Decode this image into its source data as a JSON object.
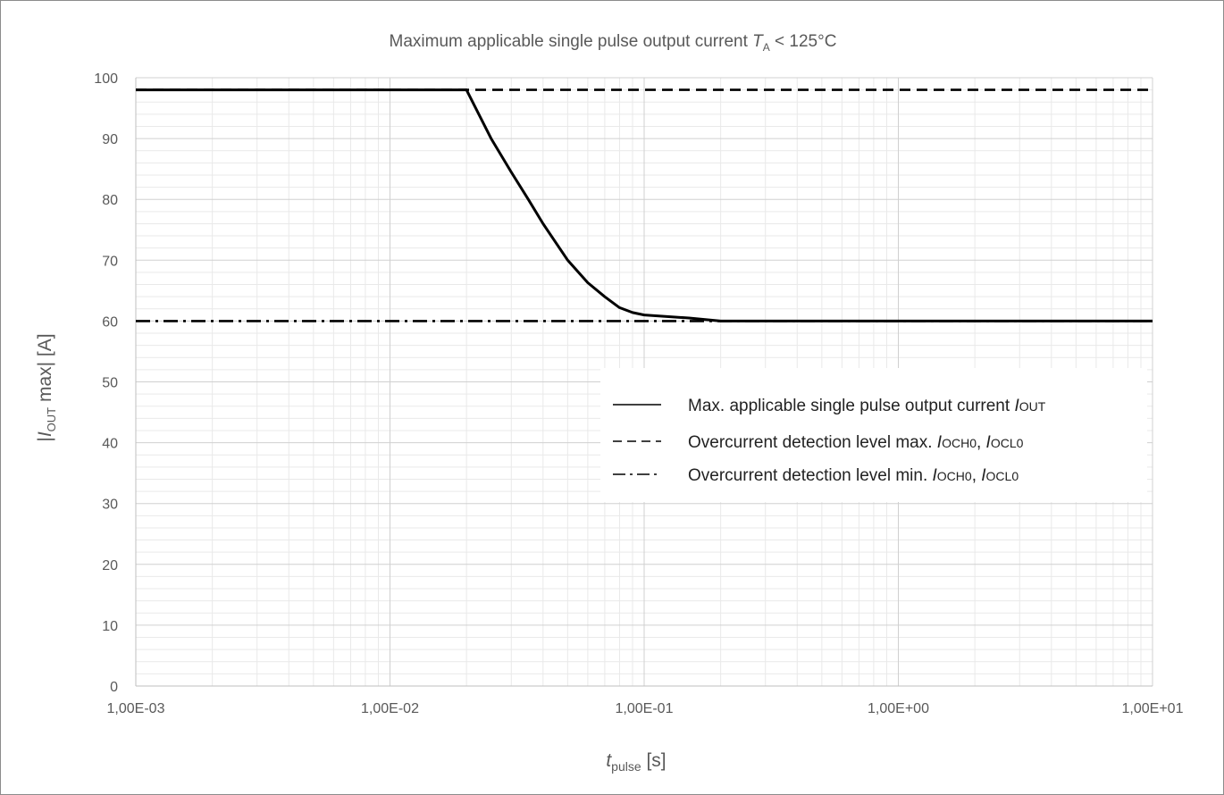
{
  "chart_data": {
    "type": "line",
    "title": {
      "prefix": "Maximum applicable single pulse output current ",
      "var": "T",
      "sub": "A",
      "suffix": " < 125°C"
    },
    "xlabel": {
      "var": "t",
      "sub": "pulse",
      "suffix": " [s]"
    },
    "ylabel": {
      "prefix": "|",
      "var": "I",
      "sub": "OUT",
      "suffix": " max| [A]"
    },
    "x_scale": "log",
    "xlim": [
      0.001,
      10
    ],
    "ylim": [
      0,
      100
    ],
    "x_ticks": [
      0.001,
      0.01,
      0.1,
      1,
      10
    ],
    "x_tick_labels": [
      "1,00E-03",
      "1,00E-02",
      "1,00E-01",
      "1,00E+00",
      "1,00E+01"
    ],
    "y_ticks": [
      0,
      10,
      20,
      30,
      40,
      50,
      60,
      70,
      80,
      90,
      100
    ],
    "y_tick_labels": [
      "0",
      "10",
      "20",
      "30",
      "40",
      "50",
      "60",
      "70",
      "80",
      "90",
      "100"
    ],
    "grid": true,
    "legend_position": "lower-right",
    "series": [
      {
        "name": "Max. applicable single pulse output current ",
        "name_var": "I",
        "name_sub": "OUT",
        "style": "solid",
        "color": "#000000",
        "x": [
          0.001,
          0.02,
          0.025,
          0.03,
          0.035,
          0.04,
          0.05,
          0.06,
          0.07,
          0.08,
          0.09,
          0.1,
          0.15,
          0.2,
          0.5,
          1,
          10
        ],
        "y": [
          98,
          98,
          90,
          84.5,
          80,
          76,
          70,
          66.3,
          64,
          62.2,
          61.4,
          61,
          60.5,
          60,
          60,
          60,
          60
        ]
      },
      {
        "name": "Overcurrent detection level max. ",
        "name_var": "I",
        "name_sub": "OCH0",
        "name_sep": ", ",
        "name_var2": "I",
        "name_sub2": "OCL0",
        "style": "dashed",
        "color": "#000000",
        "x": [
          0.001,
          10
        ],
        "y": [
          98,
          98
        ]
      },
      {
        "name": "Overcurrent detection level min. ",
        "name_var": "I",
        "name_sub": "OCH0",
        "name_sep": ", ",
        "name_var2": "I",
        "name_sub2": "OCL0",
        "style": "dashdot",
        "color": "#000000",
        "x": [
          0.001,
          10
        ],
        "y": [
          60,
          60
        ]
      }
    ]
  }
}
